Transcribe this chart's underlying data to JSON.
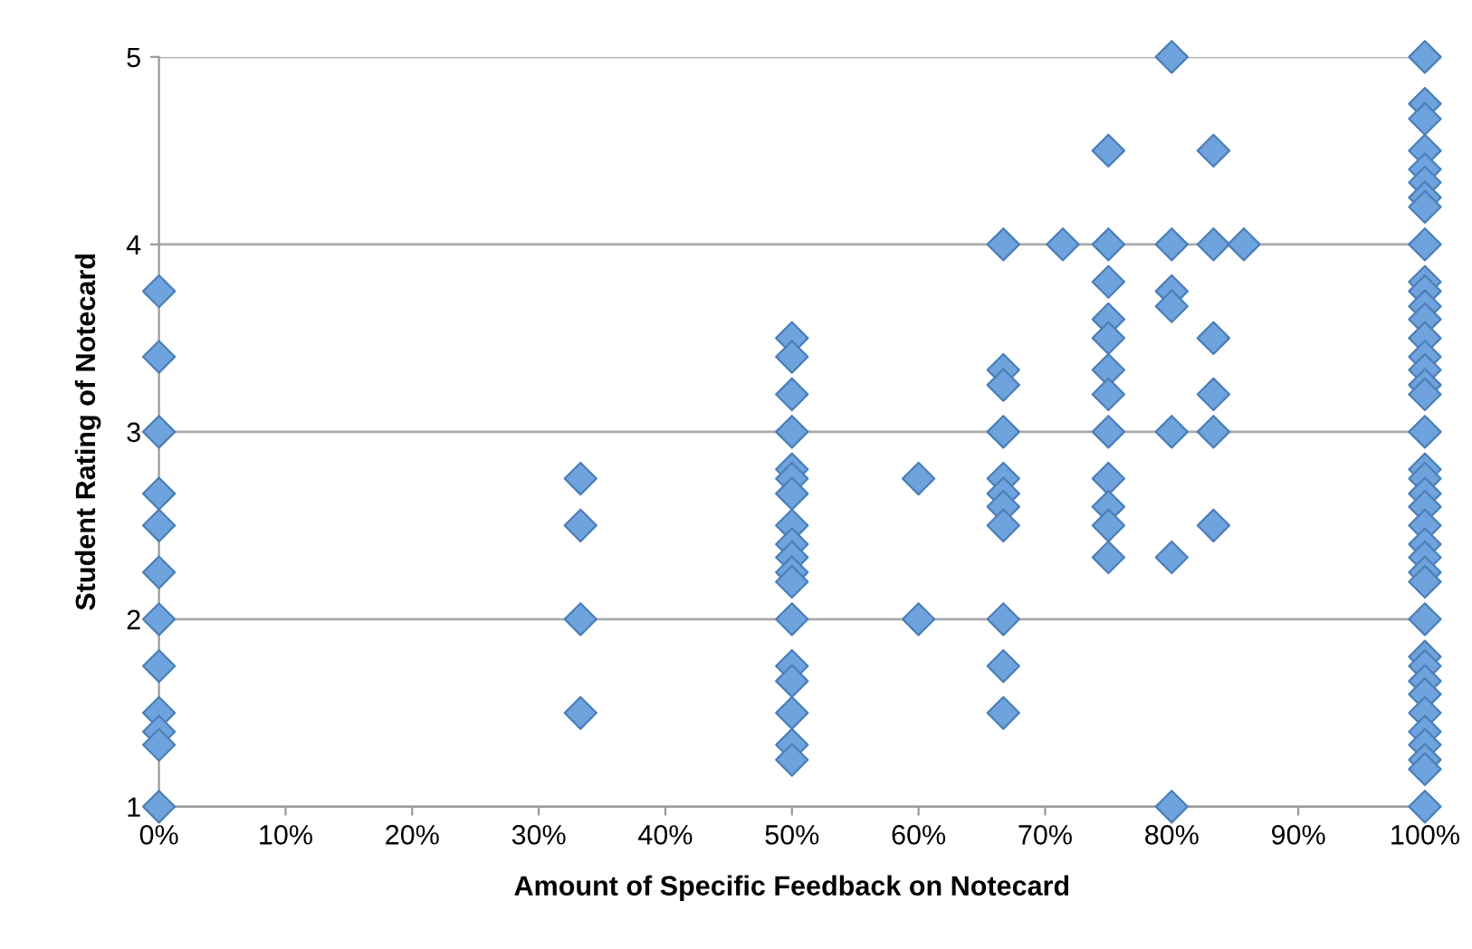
{
  "chart_data": {
    "type": "scatter",
    "xlabel": "Amount of Specific Feedback on Notecard",
    "ylabel": "Student Rating of Notecard",
    "xlim": [
      0,
      100
    ],
    "xticks": [
      {
        "value": 0,
        "label": "0%"
      },
      {
        "value": 10,
        "label": "10%"
      },
      {
        "value": 20,
        "label": "20%"
      },
      {
        "value": 30,
        "label": "30%"
      },
      {
        "value": 40,
        "label": "40%"
      },
      {
        "value": 50,
        "label": "50%"
      },
      {
        "value": 60,
        "label": "60%"
      },
      {
        "value": 70,
        "label": "70%"
      },
      {
        "value": 80,
        "label": "80%"
      },
      {
        "value": 90,
        "label": "90%"
      },
      {
        "value": 100,
        "label": "100%"
      }
    ],
    "ylim": [
      1,
      5
    ],
    "yticks": [
      1,
      2,
      3,
      4,
      5
    ],
    "grid": "y",
    "marker": "diamond",
    "legend": false,
    "series": [
      {
        "color": "#6fa3dd",
        "x": [
          0,
          0,
          0,
          0,
          0,
          0,
          0,
          0,
          0,
          0,
          0,
          0,
          33.3,
          33.3,
          33.3,
          33.3,
          50,
          50,
          50,
          50,
          50,
          50,
          50,
          50,
          50,
          50,
          50,
          50,
          50,
          50,
          50,
          50,
          50,
          50,
          60,
          60,
          66.7,
          66.7,
          66.7,
          66.7,
          66.7,
          66.7,
          66.7,
          66.7,
          66.7,
          66.7,
          66.7,
          71.4,
          75,
          75,
          75,
          75,
          75,
          75,
          75,
          75,
          75,
          75,
          75,
          75,
          80,
          80,
          80,
          80,
          80,
          80,
          80,
          83.3,
          83.3,
          83.3,
          83.3,
          83.3,
          83.3,
          85.7,
          100,
          100,
          100,
          100,
          100,
          100,
          100,
          100,
          100,
          100,
          100,
          100,
          100,
          100,
          100,
          100,
          100,
          100,
          100,
          100,
          100,
          100,
          100,
          100,
          100,
          100,
          100,
          100,
          100,
          100,
          100,
          100,
          100,
          100,
          100,
          100,
          100,
          100,
          100
        ],
        "values": [
          3.75,
          3.4,
          3.0,
          2.67,
          2.5,
          2.25,
          2.0,
          1.75,
          1.5,
          1.4,
          1.33,
          1.0,
          2.75,
          2.5,
          2.0,
          1.5,
          3.5,
          3.4,
          3.2,
          3.0,
          2.8,
          2.75,
          2.67,
          2.5,
          2.4,
          2.33,
          2.25,
          2.2,
          2.0,
          1.75,
          1.67,
          1.5,
          1.33,
          1.25,
          2.75,
          2.0,
          4.0,
          3.33,
          3.25,
          3.0,
          2.75,
          2.67,
          2.6,
          2.5,
          2.0,
          1.75,
          1.5,
          4.0,
          4.5,
          4.0,
          3.8,
          3.6,
          3.5,
          3.33,
          3.2,
          3.0,
          2.75,
          2.6,
          2.5,
          2.33,
          5.0,
          4.0,
          3.75,
          3.67,
          3.0,
          2.33,
          1.0,
          4.5,
          4.0,
          3.5,
          3.2,
          3.0,
          2.5,
          4.0,
          5.0,
          4.75,
          4.67,
          4.5,
          4.4,
          4.33,
          4.25,
          4.2,
          4.0,
          3.8,
          3.75,
          3.67,
          3.6,
          3.5,
          3.4,
          3.33,
          3.25,
          3.2,
          3.0,
          2.8,
          2.75,
          2.67,
          2.6,
          2.5,
          2.4,
          2.33,
          2.25,
          2.2,
          2.0,
          1.8,
          1.75,
          1.67,
          1.6,
          1.5,
          1.4,
          1.33,
          1.25,
          1.2,
          1.0
        ]
      }
    ]
  }
}
